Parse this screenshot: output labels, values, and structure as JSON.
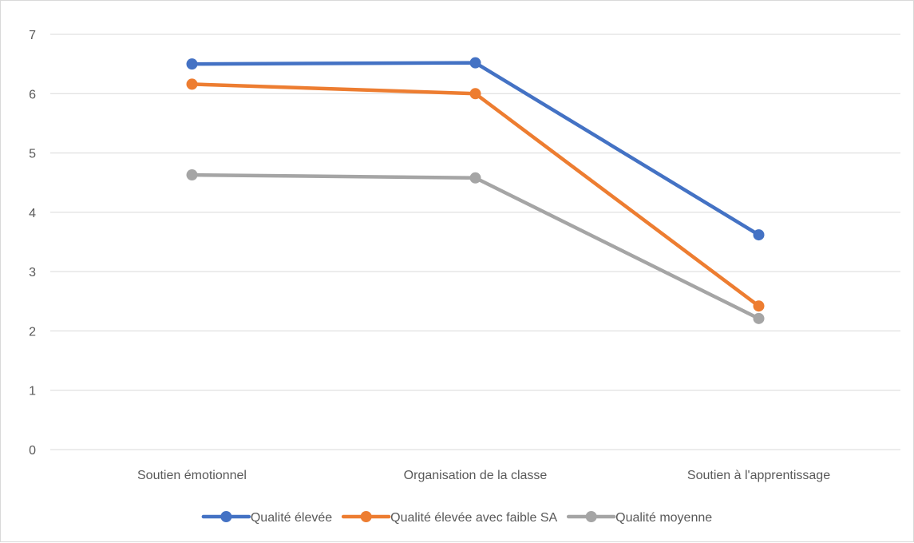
{
  "chart_data": {
    "type": "line",
    "categories": [
      "Soutien émotionnel",
      "Organisation de la classe",
      "Soutien à l'apprentissage"
    ],
    "series": [
      {
        "name": "Qualité élevée",
        "values": [
          6.5,
          6.52,
          3.62
        ],
        "color": "#4472c4"
      },
      {
        "name": "Qualité élevée avec faible SA",
        "values": [
          6.16,
          6.0,
          2.42
        ],
        "color": "#ed7d31"
      },
      {
        "name": "Qualité moyenne",
        "values": [
          4.63,
          4.58,
          2.21
        ],
        "color": "#a5a5a5"
      }
    ],
    "ylim": [
      0,
      7
    ],
    "yticks": [
      "0",
      "1",
      "2",
      "3",
      "4",
      "5",
      "6",
      "7"
    ],
    "grid": true,
    "gridColor": "#d9d9d9",
    "legend": "bottom"
  }
}
